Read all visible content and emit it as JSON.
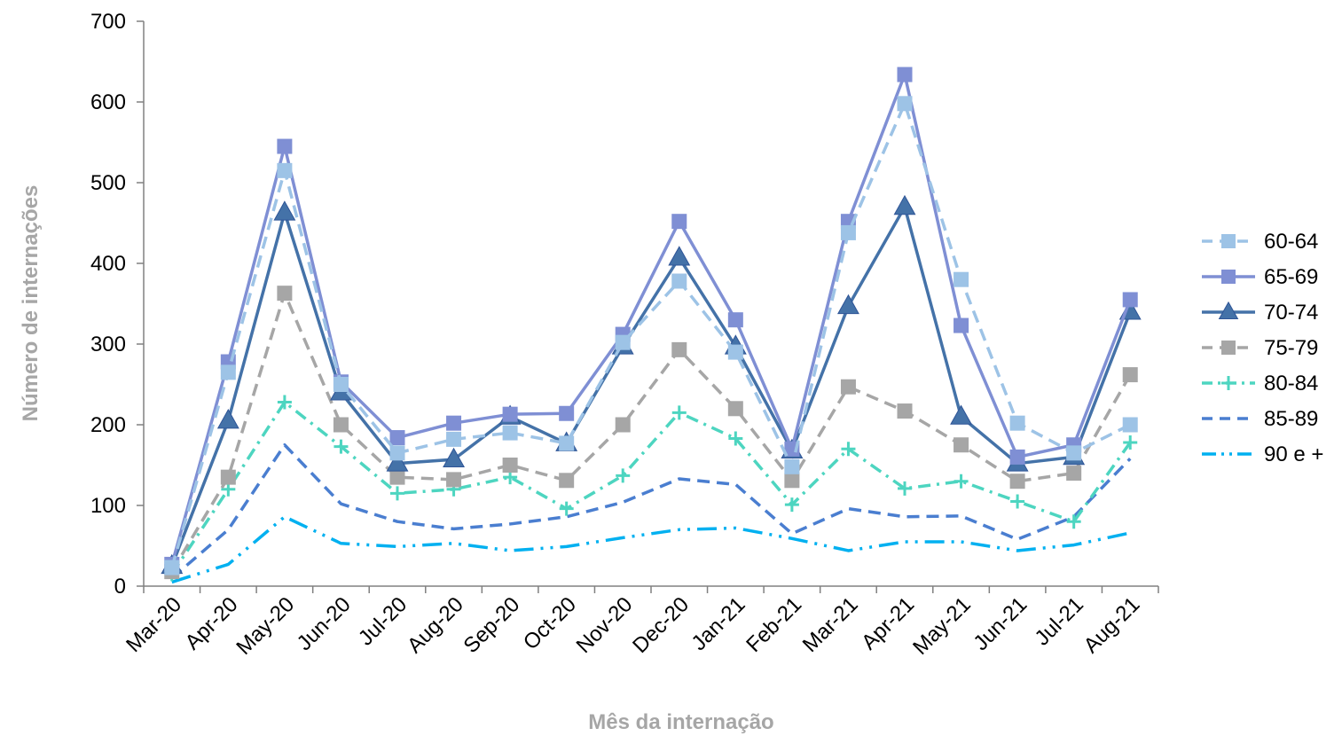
{
  "chart_data": {
    "type": "line",
    "title": "",
    "xlabel": "Mês da internação",
    "ylabel": "Número de internações",
    "ylim": [
      0,
      700
    ],
    "yticks": [
      0,
      100,
      200,
      300,
      400,
      500,
      600,
      700
    ],
    "grid": false,
    "legend_position": "right",
    "categories": [
      "Mar-20",
      "Apr-20",
      "May-20",
      "Jun-20",
      "Jul-20",
      "Aug-20",
      "Sep-20",
      "Oct-20",
      "Nov-20",
      "Dec-20",
      "Jan-21",
      "Feb-21",
      "Mar-21",
      "Apr-21",
      "May-21",
      "Jun-21",
      "Jul-21",
      "Aug-21"
    ],
    "series": [
      {
        "name": "60-64",
        "color": "#9dc3e6",
        "dash": "dash",
        "marker": "square",
        "marker_fill": "#9dc3e6",
        "values": [
          23,
          265,
          515,
          250,
          165,
          182,
          190,
          177,
          302,
          378,
          290,
          148,
          438,
          598,
          380,
          202,
          165,
          200
        ]
      },
      {
        "name": "65-69",
        "color": "#7f8fd4",
        "dash": "solid",
        "marker": "square",
        "marker_fill": "#7f8fd4",
        "values": [
          27,
          278,
          545,
          253,
          184,
          202,
          213,
          214,
          312,
          452,
          330,
          170,
          452,
          634,
          323,
          160,
          175,
          355
        ]
      },
      {
        "name": "70-74",
        "color": "#4472a8",
        "dash": "solid",
        "marker": "triangle",
        "marker_fill": "#4472a8",
        "values": [
          25,
          205,
          463,
          240,
          152,
          157,
          210,
          177,
          297,
          407,
          297,
          168,
          347,
          470,
          210,
          152,
          160,
          340
        ]
      },
      {
        "name": "75-79",
        "color": "#a6a6a6",
        "dash": "dash",
        "marker": "square",
        "marker_fill": "#a6a6a6",
        "values": [
          18,
          135,
          363,
          200,
          135,
          132,
          150,
          131,
          200,
          293,
          220,
          131,
          247,
          217,
          175,
          130,
          140,
          262
        ]
      },
      {
        "name": "80-84",
        "color": "#4dd5c0",
        "dash": "dashdot",
        "marker": "plus",
        "marker_fill": "#4dd5c0",
        "values": [
          15,
          120,
          228,
          173,
          115,
          120,
          135,
          96,
          137,
          215,
          183,
          101,
          170,
          121,
          130,
          105,
          80,
          178
        ]
      },
      {
        "name": "85-89",
        "color": "#4a7ed0",
        "dash": "dash",
        "marker": "none",
        "marker_fill": "#4a7ed0",
        "values": [
          10,
          70,
          175,
          102,
          80,
          71,
          77,
          86,
          104,
          133,
          126,
          65,
          96,
          86,
          87,
          58,
          86,
          158
        ]
      },
      {
        "name": "90 e +",
        "color": "#00b0f0",
        "dash": "longdashdot",
        "marker": "none",
        "marker_fill": "#00b0f0",
        "values": [
          5,
          27,
          86,
          53,
          49,
          53,
          44,
          49,
          60,
          70,
          72,
          59,
          44,
          55,
          55,
          44,
          51,
          66
        ]
      }
    ]
  }
}
